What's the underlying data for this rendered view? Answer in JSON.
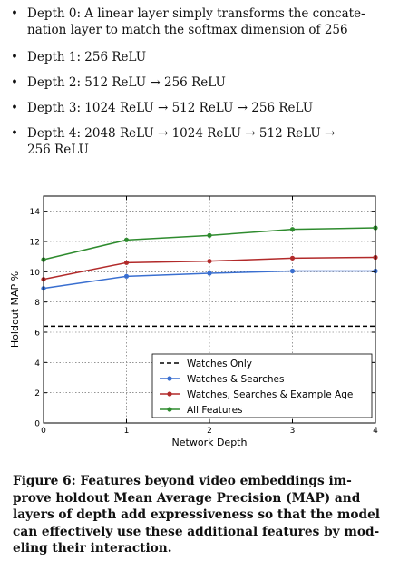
{
  "bullets": [
    {
      "label": "Depth 0:",
      "text": "A linear layer simply transforms the concatenation layer to match the softmax dimension of 256",
      "lines": [
        "Depth 0:  A linear layer simply transforms the concate-",
        "nation layer to match the softmax dimension of 256"
      ]
    },
    {
      "label": "Depth 1:",
      "text": "256 ReLU",
      "lines": [
        "Depth 1:  256 ReLU"
      ]
    },
    {
      "label": "Depth 2:",
      "text": "512 ReLU → 256 ReLU",
      "lines": [
        "Depth 2:  512 ReLU → 256 ReLU"
      ]
    },
    {
      "label": "Depth 3:",
      "text": "1024 ReLU → 512 ReLU → 256 ReLU",
      "lines": [
        "Depth 3:  1024 ReLU → 512 ReLU → 256 ReLU"
      ]
    },
    {
      "label": "Depth 4:",
      "text": "2048 ReLU → 1024 ReLU → 512 ReLU → 256 ReLU",
      "lines": [
        "Depth 4:  2048 ReLU → 1024 ReLU → 512 ReLU →",
        "256 ReLU"
      ]
    }
  ],
  "chart_data": {
    "type": "line",
    "title": "",
    "xlabel": "Network Depth",
    "ylabel": "Holdout MAP %",
    "x": [
      0,
      1,
      2,
      3,
      4
    ],
    "xlim": [
      0,
      4
    ],
    "ylim": [
      0,
      15
    ],
    "xticks": [
      "0",
      "1",
      "2",
      "3",
      "4"
    ],
    "yticks": [
      "0",
      "2",
      "4",
      "6",
      "8",
      "10",
      "12",
      "14"
    ],
    "grid": true,
    "legend_position": "bottom-right",
    "series": [
      {
        "name": "Watches Only",
        "style": "dashed",
        "color": "#000000",
        "values": [
          6.4,
          6.4,
          6.4,
          6.4,
          6.4
        ]
      },
      {
        "name": "Watches & Searches",
        "style": "solid",
        "color": "#3a6fd0",
        "values": [
          8.9,
          9.7,
          9.9,
          10.05,
          10.05
        ]
      },
      {
        "name": "Watches, Searches & Example Age",
        "style": "solid",
        "color": "#b22a2a",
        "values": [
          9.5,
          10.6,
          10.7,
          10.9,
          10.95
        ]
      },
      {
        "name": "All Features",
        "style": "solid",
        "color": "#2e8b2e",
        "values": [
          10.8,
          12.1,
          12.4,
          12.8,
          12.9
        ]
      }
    ]
  },
  "caption": {
    "lines": [
      "Figure 6: Features beyond video embeddings im-",
      "prove holdout Mean Average Precision (MAP) and",
      "layers of depth add expressiveness so that the model",
      "can effectively use these additional features by mod-",
      "eling their interaction."
    ]
  }
}
